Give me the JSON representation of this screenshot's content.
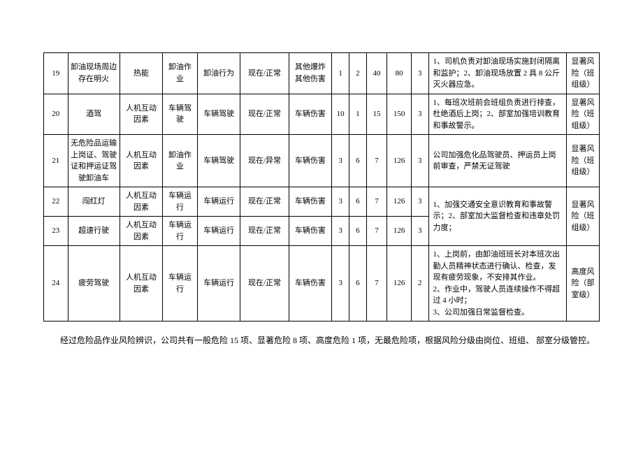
{
  "rows": [
    {
      "idx": "19",
      "name": "卸油现场周边存在明火",
      "factor": "热能",
      "act": "卸油作业",
      "beh": "卸油行为",
      "state": "现在/正常",
      "harm": "其他爆炸其他伤害",
      "n1": "1",
      "n2": "2",
      "n3": "40",
      "n4": "80",
      "n5": "3",
      "meas": "1、司机负责对卸油现场实施封闭隔离和监护；2、卸油现场放置 2 具 8 公斤灭火器应急。",
      "risk": "显著风险（班组级）"
    },
    {
      "idx": "20",
      "name": "酒驾",
      "factor": "人机互动因素",
      "act": "车辆驾驶",
      "beh": "车辆驾驶",
      "state": "现在/正常",
      "harm": "车辆伤害",
      "n1": "10",
      "n2": "1",
      "n3": "15",
      "n4": "150",
      "n5": "3",
      "meas": "1、每班次班前会班组负责进行排查，杜绝酒后上岗；2、部室加强培训教育和事故警示。",
      "risk": "显著风险（班组级）"
    },
    {
      "idx": "21",
      "name": "无危险品运输上岗证、驾驶证和押运证驾驶卸油车",
      "factor": "人机互动因素",
      "act": "卸油作业",
      "beh": "车辆驾驶",
      "state": "现在/异常",
      "harm": "车辆伤害",
      "n1": "3",
      "n2": "6",
      "n3": "7",
      "n4": "126",
      "n5": "3",
      "meas": "公司加强危化品驾驶员、押运员上岗前审查，严禁无证驾驶",
      "risk": "显著风险（班组级）"
    },
    {
      "idx": "22",
      "name": "闯红灯",
      "factor": "人机互动因素",
      "act": "车辆运行",
      "beh": "车辆运行",
      "state": "现在/正常",
      "harm": "车辆伤害",
      "n1": "3",
      "n2": "6",
      "n3": "7",
      "n4": "126",
      "n5": "3",
      "meas": "",
      "risk": ""
    },
    {
      "idx": "23",
      "name": "超速行驶",
      "factor": "人机互动因素",
      "act": "车辆运行",
      "beh": "车辆运行",
      "state": "现在/正常",
      "harm": "车辆伤害",
      "n1": "3",
      "n2": "6",
      "n3": "7",
      "n4": "126",
      "n5": "3",
      "meas": "",
      "risk": ""
    },
    {
      "idx": "24",
      "name": "疲劳驾驶",
      "factor": "人机互动因素",
      "act": "车辆运行",
      "beh": "车辆运行",
      "state": "现在/正常",
      "harm": "车辆伤害",
      "n1": "3",
      "n2": "6",
      "n3": "7",
      "n4": "126",
      "n5": "2",
      "meas": "1、上岗前，由卸油班班长对本班次出勤人员精神状态进行确认、检查，发现有疲劳现象，不安排其作业。\n2、作业中，驾驶人员连续操作不得超过 4 小时；\n3、公司加强日常监督检查。",
      "risk": "高度风险（部室级）"
    }
  ],
  "merged": {
    "meas_22_23": "1、加强交通安全意识教育和事故警示；2、部室加大监督检查和违章处罚力度；",
    "risk_22_23": "显著风险（班组级）"
  },
  "footnote": "经过危险品作业风险辨识，公司共有一般危险 15 项、显著危险 8 项、高度危险 1 项，无最危险项，根据风险分级由岗位、班组、 部室分级管控。"
}
